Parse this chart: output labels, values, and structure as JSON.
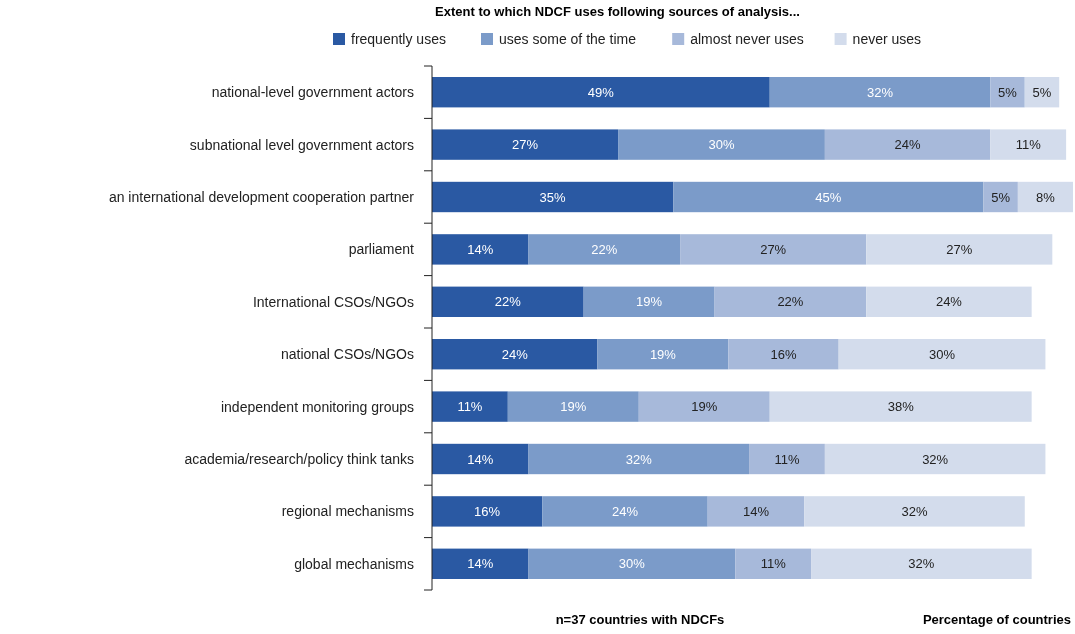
{
  "chart_data": {
    "type": "bar",
    "orientation": "horizontal",
    "stacked": true,
    "title": "Extent to which NDCF uses following sources of analysis...",
    "xlabel": "Percentage of countries",
    "annotations": [
      "n=37 countries with NDCFs"
    ],
    "categories": [
      "national-level government actors",
      "subnational level government actors",
      "an international development cooperation partner",
      "parliament",
      "International CSOs/NGOs",
      "national CSOs/NGOs",
      "independent monitoring groups",
      "academia/research/policy think tanks",
      "regional mechanisms",
      "global mechanisms"
    ],
    "series": [
      {
        "name": "frequently uses",
        "color": "#2a59a3",
        "values": [
          49,
          27,
          35,
          14,
          22,
          24,
          11,
          14,
          16,
          14
        ],
        "value_labels": [
          "49%",
          "27%",
          "35%",
          "14%",
          "22%",
          "24%",
          "11%",
          "14%",
          "16%",
          "14%"
        ]
      },
      {
        "name": "uses some of the time",
        "color": "#7b9bc9",
        "values": [
          32,
          30,
          45,
          22,
          19,
          19,
          19,
          32,
          24,
          30
        ],
        "value_labels": [
          "32%",
          "30%",
          "45%",
          "22%",
          "19%",
          "19%",
          "19%",
          "32%",
          "24%",
          "30%"
        ]
      },
      {
        "name": "almost never uses",
        "color": "#a7b9da",
        "values": [
          5,
          24,
          5,
          27,
          22,
          16,
          19,
          11,
          14,
          11
        ],
        "value_labels": [
          "5%",
          "24%",
          "5%",
          "27%",
          "22%",
          "16%",
          "19%",
          "11%",
          "14%",
          "11%"
        ]
      },
      {
        "name": "never uses",
        "color": "#d3dcec",
        "values": [
          5,
          11,
          8,
          27,
          24,
          30,
          38,
          32,
          32,
          32
        ],
        "value_labels": [
          "5%",
          "11%",
          "8%",
          "27%",
          "24%",
          "30%",
          "38%",
          "32%",
          "32%",
          "32%"
        ]
      }
    ],
    "legend": "top",
    "tick_labels": "y"
  }
}
